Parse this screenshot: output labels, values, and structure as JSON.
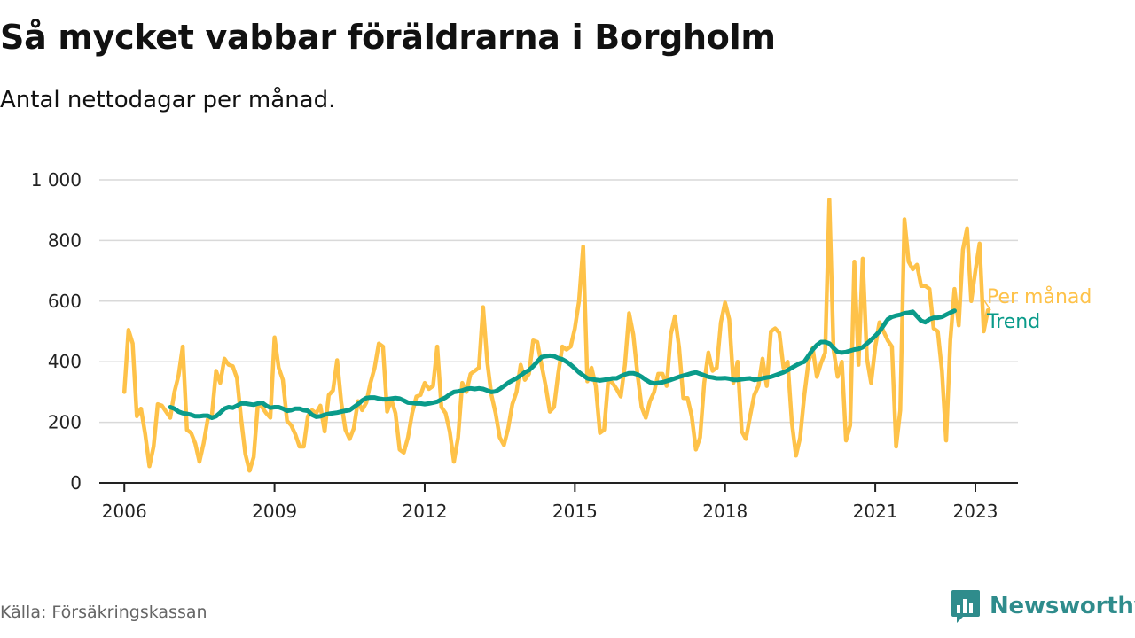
{
  "header": {
    "title": "Så mycket vabbar föräldrarna i Borgholm",
    "subtitle": "Antal nettodagar per månad."
  },
  "footer": {
    "source": "Källa: Försäkringskassan",
    "brand": "Newsworthy",
    "brand_icon": "bar-chart-speech-bubble-icon"
  },
  "colors": {
    "monthly": "#fec249",
    "trend": "#0a9b8a",
    "grid": "#d9d9d9",
    "axis": "#222222",
    "brand": "#2f8c8c"
  },
  "chart_data": {
    "type": "line",
    "x_unit": "year (decimal, monthly observations)",
    "ylim": [
      0,
      1000
    ],
    "y_ticks": [
      0,
      200,
      400,
      600,
      800,
      1000
    ],
    "y_tick_labels": [
      "0",
      "200",
      "400",
      "600",
      "800",
      "1 000"
    ],
    "x_ticks": [
      2006,
      2009,
      2012,
      2015,
      2018,
      2021,
      2023
    ],
    "x_tick_labels": [
      "2006",
      "2009",
      "2012",
      "2015",
      "2018",
      "2021",
      "2023"
    ],
    "grid": "horizontal",
    "series": [
      {
        "name": "Per månad",
        "start": 2006.0,
        "step": 0.08333,
        "values": [
          300,
          505,
          460,
          220,
          245,
          160,
          55,
          120,
          260,
          255,
          235,
          215,
          300,
          355,
          450,
          175,
          165,
          130,
          70,
          130,
          210,
          225,
          370,
          330,
          410,
          390,
          385,
          345,
          210,
          95,
          40,
          85,
          260,
          250,
          230,
          215,
          480,
          380,
          340,
          205,
          190,
          160,
          120,
          120,
          220,
          240,
          230,
          255,
          170,
          290,
          305,
          405,
          265,
          175,
          145,
          180,
          270,
          240,
          265,
          330,
          380,
          460,
          450,
          235,
          275,
          230,
          110,
          100,
          150,
          230,
          285,
          290,
          330,
          310,
          320,
          450,
          250,
          230,
          170,
          70,
          150,
          330,
          300,
          360,
          370,
          380,
          580,
          400,
          290,
          230,
          150,
          125,
          180,
          260,
          300,
          390,
          340,
          360,
          470,
          465,
          390,
          320,
          235,
          250,
          360,
          450,
          440,
          450,
          510,
          600,
          780,
          335,
          380,
          320,
          165,
          175,
          340,
          330,
          310,
          285,
          390,
          560,
          490,
          360,
          250,
          215,
          270,
          300,
          360,
          360,
          320,
          490,
          550,
          445,
          280,
          280,
          220,
          110,
          150,
          330,
          430,
          370,
          380,
          530,
          595,
          540,
          330,
          400,
          170,
          145,
          220,
          290,
          320,
          410,
          320,
          500,
          510,
          495,
          380,
          400,
          200,
          90,
          150,
          290,
          400,
          445,
          350,
          395,
          430,
          935,
          440,
          350,
          400,
          140,
          190,
          730,
          390,
          740,
          410,
          330,
          450,
          530,
          500,
          470,
          450,
          120,
          240,
          870,
          730,
          705,
          720,
          650,
          650,
          640,
          510,
          500,
          370,
          140,
          470,
          640,
          520,
          770,
          840,
          600,
          700,
          790,
          500,
          570
        ]
      },
      {
        "name": "Trend",
        "start": 2006.9167,
        "step": 0.08333,
        "values": [
          250,
          245,
          235,
          230,
          228,
          225,
          220,
          220,
          222,
          222,
          215,
          220,
          232,
          245,
          250,
          248,
          255,
          262,
          262,
          260,
          258,
          262,
          265,
          255,
          248,
          250,
          250,
          245,
          238,
          240,
          245,
          245,
          240,
          238,
          225,
          218,
          220,
          225,
          228,
          230,
          232,
          235,
          238,
          240,
          250,
          260,
          272,
          280,
          282,
          282,
          278,
          276,
          276,
          278,
          280,
          278,
          272,
          265,
          264,
          262,
          262,
          260,
          262,
          265,
          268,
          275,
          282,
          292,
          300,
          302,
          305,
          310,
          312,
          310,
          312,
          310,
          305,
          300,
          302,
          310,
          320,
          330,
          338,
          345,
          355,
          365,
          372,
          385,
          400,
          415,
          418,
          420,
          418,
          412,
          408,
          400,
          390,
          378,
          365,
          355,
          345,
          342,
          340,
          338,
          340,
          342,
          345,
          345,
          352,
          358,
          362,
          362,
          358,
          350,
          340,
          332,
          328,
          330,
          332,
          336,
          340,
          345,
          350,
          354,
          358,
          362,
          365,
          360,
          355,
          350,
          348,
          345,
          345,
          346,
          344,
          340,
          340,
          342,
          344,
          345,
          340,
          342,
          345,
          348,
          350,
          355,
          360,
          365,
          372,
          380,
          388,
          395,
          400,
          420,
          440,
          455,
          465,
          465,
          460,
          445,
          432,
          430,
          432,
          436,
          440,
          442,
          448,
          460,
          472,
          485,
          500,
          520,
          540,
          548,
          552,
          555,
          560,
          562,
          565,
          550,
          535,
          530,
          540,
          545,
          545,
          548,
          555,
          562,
          568
        ]
      }
    ],
    "end_labels": [
      {
        "series": "Per månad",
        "text": "Per månad"
      },
      {
        "series": "Trend",
        "text": "Trend"
      }
    ]
  }
}
